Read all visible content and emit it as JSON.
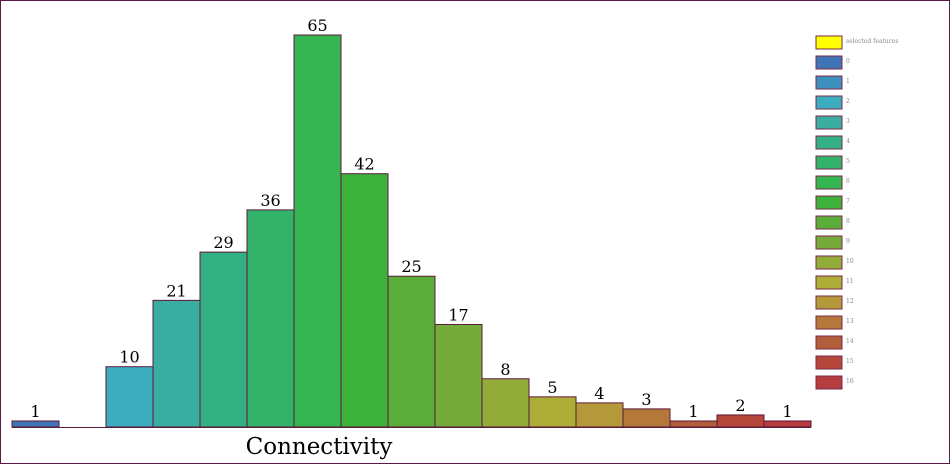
{
  "chart_data": {
    "type": "bar",
    "xlabel": "Connectivity",
    "ylabel": "",
    "title": "",
    "categories": [
      "0",
      "1",
      "2",
      "3",
      "4",
      "5",
      "6",
      "7",
      "8",
      "9",
      "10",
      "11",
      "12",
      "13",
      "14",
      "15",
      "16"
    ],
    "values": [
      1,
      0,
      10,
      21,
      29,
      36,
      65,
      42,
      25,
      17,
      8,
      5,
      4,
      3,
      1,
      2,
      1
    ],
    "value_labels": [
      "1",
      "",
      "10",
      "21",
      "29",
      "36",
      "65",
      "42",
      "25",
      "17",
      "8",
      "5",
      "4",
      "3",
      "1",
      "2",
      "1"
    ],
    "colors": [
      "#3f75b4",
      "#3d8fbe",
      "#3cadbf",
      "#38ada0",
      "#34b085",
      "#33b36a",
      "#34b551",
      "#3cb23a",
      "#5aad38",
      "#74ab3a",
      "#93ab38",
      "#acac36",
      "#b4993a",
      "#b3783a",
      "#b35e3a",
      "#b4463a",
      "#b73c40"
    ],
    "ylim": [
      0,
      65
    ],
    "legend": {
      "placement": "right",
      "items": [
        {
          "label": "selected features",
          "color": "#ffff00"
        },
        {
          "label": "0",
          "color": "#3f75b4"
        },
        {
          "label": "1",
          "color": "#3d8fbe"
        },
        {
          "label": "2",
          "color": "#3cadbf"
        },
        {
          "label": "3",
          "color": "#38ada0"
        },
        {
          "label": "4",
          "color": "#34b085"
        },
        {
          "label": "5",
          "color": "#33b36a"
        },
        {
          "label": "6",
          "color": "#34b551"
        },
        {
          "label": "7",
          "color": "#3cb23a"
        },
        {
          "label": "8",
          "color": "#5aad38"
        },
        {
          "label": "9",
          "color": "#74ab3a"
        },
        {
          "label": "10",
          "color": "#93ab38"
        },
        {
          "label": "11",
          "color": "#acac36"
        },
        {
          "label": "12",
          "color": "#b4993a"
        },
        {
          "label": "13",
          "color": "#b3783a"
        },
        {
          "label": "14",
          "color": "#b35e3a"
        },
        {
          "label": "15",
          "color": "#b4463a"
        },
        {
          "label": "16",
          "color": "#b73c40"
        }
      ]
    }
  }
}
